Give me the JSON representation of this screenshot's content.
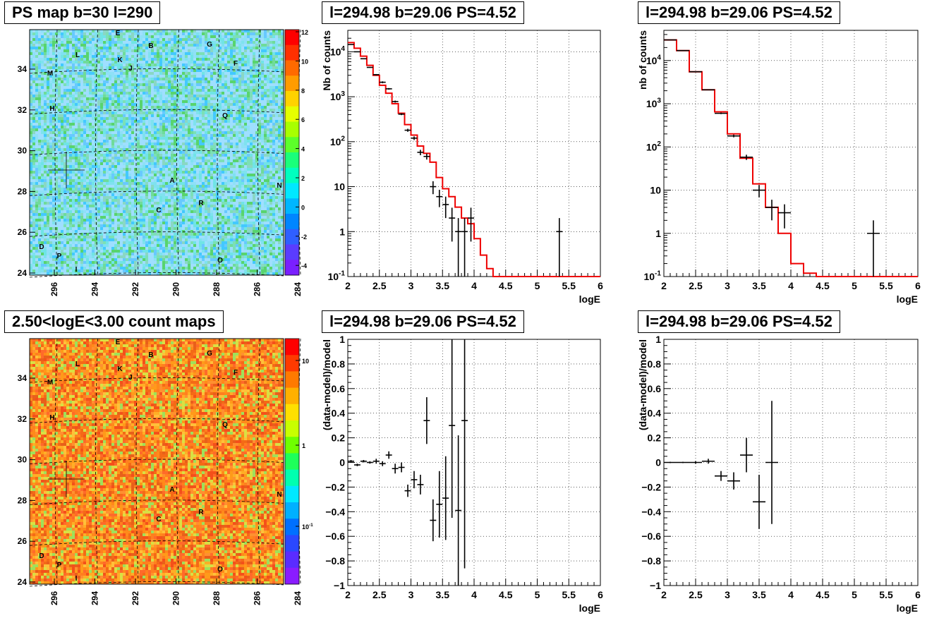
{
  "panels": {
    "map1": {
      "title": "PS map b=30 l=290"
    },
    "map2": {
      "title": "2.50<logE<3.00 count maps"
    },
    "spec1": {
      "title": "l=294.98 b=29.06 PS=4.52"
    },
    "spec2": {
      "title": "l=294.98 b=29.06 PS=4.52"
    },
    "res1": {
      "title": "l=294.98 b=29.06 PS=4.52"
    },
    "res2": {
      "title": "l=294.98 b=29.06 PS=4.52"
    }
  },
  "map_common": {
    "x_ticks": [
      "296",
      "294",
      "292",
      "290",
      "288",
      "286",
      "284"
    ],
    "y_ticks": [
      "24",
      "26",
      "28",
      "30",
      "32",
      "34"
    ],
    "labels": [
      "E",
      "B",
      "G",
      "L",
      "K",
      "J",
      "F",
      "M",
      "H",
      "Q",
      "A",
      "N",
      "R",
      "C",
      "D",
      "P",
      "O",
      "I"
    ]
  },
  "map1_colorbar": [
    "12",
    "10",
    "8",
    "6",
    "4",
    "2",
    "0",
    "-2",
    "-4"
  ],
  "map2_colorbar": [
    "10",
    "1",
    "10^-1"
  ],
  "chart_data": [
    {
      "type": "line",
      "panel": "spec1",
      "xlabel": "logE",
      "ylabel": "Nb of counts",
      "xlim": [
        2,
        6
      ],
      "ylim": [
        0.1,
        30000
      ],
      "yscale": "log",
      "x_ticks": [
        "2",
        "2.5",
        "3",
        "3.5",
        "4",
        "4.5",
        "5",
        "5.5",
        "6"
      ],
      "y_ticks": [
        "10^-1",
        "1",
        "10",
        "10^2",
        "10^3",
        "10^4"
      ],
      "grid": true,
      "model_step": {
        "color": "#ee0000",
        "edges": [
          2.0,
          2.1,
          2.2,
          2.3,
          2.4,
          2.5,
          2.6,
          2.7,
          2.8,
          2.9,
          3.0,
          3.1,
          3.2,
          3.3,
          3.4,
          3.5,
          3.6,
          3.7,
          3.8,
          3.9,
          4.0,
          4.1,
          4.2,
          4.3,
          6.0
        ],
        "values": [
          16000,
          12000,
          8000,
          5000,
          3000,
          1800,
          1200,
          700,
          430,
          240,
          140,
          80,
          55,
          35,
          16,
          9,
          6,
          3.5,
          2,
          1.5,
          0.7,
          0.3,
          0.15,
          0.1
        ]
      },
      "data_points": [
        {
          "x": 2.05,
          "y": 14500,
          "xerr": 0.05,
          "yerr": [
            14400,
            14600
          ]
        },
        {
          "x": 2.15,
          "y": 10000,
          "xerr": 0.05,
          "yerr": [
            9900,
            10100
          ]
        },
        {
          "x": 2.25,
          "y": 7000,
          "xerr": 0.05,
          "yerr": [
            6900,
            7100
          ]
        },
        {
          "x": 2.35,
          "y": 4500,
          "xerr": 0.05,
          "yerr": [
            4400,
            4600
          ]
        },
        {
          "x": 2.45,
          "y": 3100,
          "xerr": 0.05,
          "yerr": [
            3000,
            3200
          ]
        },
        {
          "x": 2.55,
          "y": 2100,
          "xerr": 0.05,
          "yerr": [
            2000,
            2200
          ]
        },
        {
          "x": 2.65,
          "y": 1500,
          "xerr": 0.05,
          "yerr": [
            1440,
            1560
          ]
        },
        {
          "x": 2.75,
          "y": 780,
          "xerr": 0.05,
          "yerr": [
            740,
            820
          ]
        },
        {
          "x": 2.85,
          "y": 410,
          "xerr": 0.05,
          "yerr": [
            390,
            430
          ]
        },
        {
          "x": 2.95,
          "y": 180,
          "xerr": 0.05,
          "yerr": [
            166,
            194
          ]
        },
        {
          "x": 3.05,
          "y": 120,
          "xerr": 0.05,
          "yerr": [
            109,
            131
          ]
        },
        {
          "x": 3.15,
          "y": 58,
          "xerr": 0.05,
          "yerr": [
            50,
            66
          ]
        },
        {
          "x": 3.25,
          "y": 47,
          "xerr": 0.05,
          "yerr": [
            40,
            54
          ]
        },
        {
          "x": 3.35,
          "y": 10,
          "xerr": 0.05,
          "yerr": [
            6.8,
            13.2
          ]
        },
        {
          "x": 3.45,
          "y": 6,
          "xerr": 0.05,
          "yerr": [
            3.5,
            8.5
          ]
        },
        {
          "x": 3.55,
          "y": 4,
          "xerr": 0.05,
          "yerr": [
            2,
            6
          ]
        },
        {
          "x": 3.65,
          "y": 2,
          "xerr": 0.05,
          "yerr": [
            0.6,
            3.4
          ]
        },
        {
          "x": 3.75,
          "y": 1,
          "xerr": 0.05,
          "yerr": [
            0.1,
            2
          ]
        },
        {
          "x": 3.85,
          "y": 1,
          "xerr": 0.05,
          "yerr": [
            0.1,
            2
          ]
        },
        {
          "x": 3.95,
          "y": 2,
          "xerr": 0.05,
          "yerr": [
            0.6,
            3.4
          ]
        },
        {
          "x": 5.35,
          "y": 1,
          "xerr": 0.05,
          "yerr": [
            0.1,
            2
          ]
        }
      ]
    },
    {
      "type": "line",
      "panel": "spec2",
      "xlabel": "logE",
      "ylabel": "nb of counts",
      "xlim": [
        2,
        6
      ],
      "ylim": [
        0.1,
        50000
      ],
      "yscale": "log",
      "x_ticks": [
        "2",
        "2.5",
        "3",
        "3.5",
        "4",
        "4.5",
        "5",
        "5.5",
        "6"
      ],
      "y_ticks": [
        "10^-1",
        "1",
        "10",
        "10^2",
        "10^3",
        "10^4"
      ],
      "grid": true,
      "model_step": {
        "color": "#ee0000",
        "edges": [
          2.0,
          2.2,
          2.4,
          2.6,
          2.8,
          3.0,
          3.2,
          3.4,
          3.6,
          3.8,
          4.0,
          4.2,
          4.4,
          6.0
        ],
        "values": [
          30000,
          17000,
          5500,
          2100,
          650,
          200,
          55,
          14,
          4,
          1,
          0.2,
          0.12,
          0.1
        ]
      },
      "data_points": [
        {
          "x": 2.1,
          "y": 30000,
          "xerr": 0.1,
          "yerr": [
            29800,
            30200
          ]
        },
        {
          "x": 2.3,
          "y": 17000,
          "xerr": 0.1,
          "yerr": [
            16870,
            17130
          ]
        },
        {
          "x": 2.5,
          "y": 5500,
          "xerr": 0.1,
          "yerr": [
            5430,
            5570
          ]
        },
        {
          "x": 2.7,
          "y": 2100,
          "xerr": 0.1,
          "yerr": [
            2050,
            2150
          ]
        },
        {
          "x": 2.9,
          "y": 600,
          "xerr": 0.1,
          "yerr": [
            576,
            624
          ]
        },
        {
          "x": 3.1,
          "y": 180,
          "xerr": 0.1,
          "yerr": [
            167,
            193
          ]
        },
        {
          "x": 3.3,
          "y": 58,
          "xerr": 0.1,
          "yerr": [
            50,
            66
          ]
        },
        {
          "x": 3.5,
          "y": 10,
          "xerr": 0.1,
          "yerr": [
            6.8,
            13.2
          ]
        },
        {
          "x": 3.7,
          "y": 4,
          "xerr": 0.1,
          "yerr": [
            2,
            6
          ]
        },
        {
          "x": 3.9,
          "y": 3,
          "xerr": 0.1,
          "yerr": [
            1.3,
            4.7
          ]
        },
        {
          "x": 5.3,
          "y": 1,
          "xerr": 0.1,
          "yerr": [
            0.1,
            2
          ]
        }
      ]
    },
    {
      "type": "scatter",
      "panel": "res1",
      "xlabel": "logE",
      "ylabel": "(data-model)/model",
      "xlim": [
        2,
        6
      ],
      "ylim": [
        -1,
        1
      ],
      "x_ticks": [
        "2",
        "2.5",
        "3",
        "3.5",
        "4",
        "4.5",
        "5",
        "5.5",
        "6"
      ],
      "y_ticks": [
        "−1",
        "−0.8",
        "−0.6",
        "−0.4",
        "−0.2",
        "0",
        "0.2",
        "0.4",
        "0.6",
        "0.8",
        "1"
      ],
      "grid": true,
      "data_points": [
        {
          "x": 2.05,
          "y": 0.01,
          "xerr": 0.05,
          "yerr": 0.01
        },
        {
          "x": 2.15,
          "y": -0.02,
          "xerr": 0.05,
          "yerr": 0.01
        },
        {
          "x": 2.25,
          "y": 0.01,
          "xerr": 0.05,
          "yerr": 0.01
        },
        {
          "x": 2.35,
          "y": 0.0,
          "xerr": 0.05,
          "yerr": 0.01
        },
        {
          "x": 2.45,
          "y": 0.01,
          "xerr": 0.05,
          "yerr": 0.02
        },
        {
          "x": 2.55,
          "y": -0.01,
          "xerr": 0.05,
          "yerr": 0.02
        },
        {
          "x": 2.65,
          "y": 0.06,
          "xerr": 0.05,
          "yerr": 0.03
        },
        {
          "x": 2.75,
          "y": -0.05,
          "xerr": 0.05,
          "yerr": 0.04
        },
        {
          "x": 2.85,
          "y": -0.04,
          "xerr": 0.05,
          "yerr": 0.04
        },
        {
          "x": 2.95,
          "y": -0.23,
          "xerr": 0.05,
          "yerr": 0.05
        },
        {
          "x": 3.05,
          "y": -0.14,
          "xerr": 0.05,
          "yerr": 0.07
        },
        {
          "x": 3.15,
          "y": -0.18,
          "xerr": 0.05,
          "yerr": 0.08
        },
        {
          "x": 3.25,
          "y": 0.34,
          "xerr": 0.05,
          "yerr": 0.19
        },
        {
          "x": 3.35,
          "y": -0.47,
          "xerr": 0.05,
          "yerr": 0.17
        },
        {
          "x": 3.45,
          "y": -0.34,
          "xerr": 0.05,
          "yerr": 0.27
        },
        {
          "x": 3.55,
          "y": -0.29,
          "xerr": 0.05,
          "yerr": 0.34
        },
        {
          "x": 3.65,
          "y": 0.3,
          "xerr": 0.05,
          "yerr": 0.75
        },
        {
          "x": 3.75,
          "y": -0.39,
          "xerr": 0.05,
          "yerr": 0.61
        },
        {
          "x": 3.85,
          "y": 0.34,
          "xerr": 0.05,
          "yerr": 1.2
        }
      ]
    },
    {
      "type": "scatter",
      "panel": "res2",
      "xlabel": "logE",
      "ylabel": "(data-model)/model",
      "xlim": [
        2,
        6
      ],
      "ylim": [
        -1,
        1
      ],
      "x_ticks": [
        "2",
        "2.5",
        "3",
        "3.5",
        "4",
        "4.5",
        "5",
        "5.5",
        "6"
      ],
      "y_ticks": [
        "−1",
        "−0.8",
        "−0.6",
        "−0.4",
        "−0.2",
        "0",
        "0.2",
        "0.4",
        "0.6",
        "0.8",
        "1"
      ],
      "grid": true,
      "data_points": [
        {
          "x": 2.1,
          "y": 0.0,
          "xerr": 0.1,
          "yerr": 0.005
        },
        {
          "x": 2.3,
          "y": 0.0,
          "xerr": 0.1,
          "yerr": 0.005
        },
        {
          "x": 2.5,
          "y": 0.0,
          "xerr": 0.1,
          "yerr": 0.01
        },
        {
          "x": 2.7,
          "y": 0.01,
          "xerr": 0.1,
          "yerr": 0.02
        },
        {
          "x": 2.9,
          "y": -0.11,
          "xerr": 0.1,
          "yerr": 0.04
        },
        {
          "x": 3.1,
          "y": -0.15,
          "xerr": 0.1,
          "yerr": 0.07
        },
        {
          "x": 3.3,
          "y": 0.06,
          "xerr": 0.1,
          "yerr": 0.14
        },
        {
          "x": 3.5,
          "y": -0.32,
          "xerr": 0.1,
          "yerr": 0.22
        },
        {
          "x": 3.7,
          "y": 0.0,
          "xerr": 0.1,
          "yerr": 0.5
        }
      ]
    }
  ]
}
